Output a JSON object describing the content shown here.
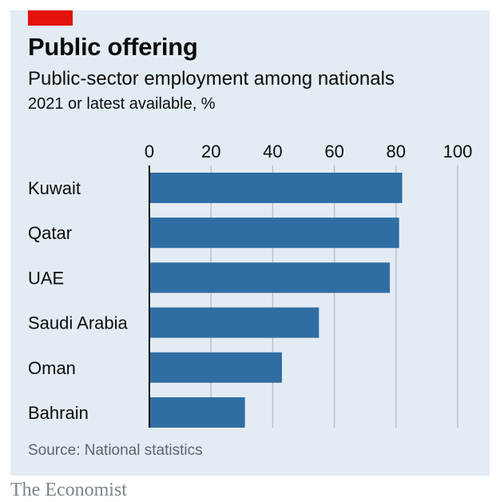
{
  "header": {
    "title": "Public offering",
    "subtitle": "Public-sector employment among nationals",
    "note": "2021 or latest available, %"
  },
  "footer": {
    "source": "Source: National statistics",
    "brand": "The Economist"
  },
  "colors": {
    "bar": "#2f6ea3",
    "grid": "#b7c3cc",
    "accent": "#e3120b",
    "background": "#e3ecf3"
  },
  "chart_data": {
    "type": "bar",
    "orientation": "horizontal",
    "title": "Public offering",
    "subtitle": "Public-sector employment among nationals",
    "xlabel": "",
    "ylabel": "",
    "xlim": [
      0,
      100
    ],
    "ticks": [
      0,
      20,
      40,
      60,
      80,
      100
    ],
    "tick_labels": [
      "0",
      "20",
      "40",
      "60",
      "80",
      "100"
    ],
    "categories": [
      "Kuwait",
      "Qatar",
      "UAE",
      "Saudi Arabia",
      "Oman",
      "Bahrain"
    ],
    "values": [
      82,
      81,
      78,
      55,
      43,
      31
    ],
    "grid": true,
    "axis_position": "top"
  }
}
